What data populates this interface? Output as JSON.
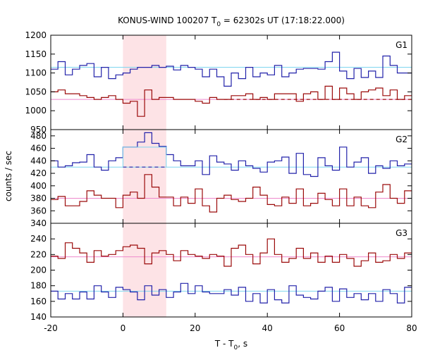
{
  "chart_data": {
    "type": "line",
    "title_prefix": "KONUS-WIND 100207 T",
    "title_sub": "0",
    "title_suffix": " = 62302s UT (17:18:22.000)",
    "ylabel": "counts / sec",
    "xlabel_prefix": "T - T",
    "xlabel_sub": "0",
    "xlabel_suffix": ", s",
    "xlim": [
      -20,
      80
    ],
    "xticks": [
      -20,
      0,
      20,
      40,
      60,
      80
    ],
    "highlight": [
      0,
      12
    ],
    "colors": {
      "blue": "#2222aa",
      "red": "#9b0a0a",
      "cyan": "#7fd6ef",
      "pink": "#ee88cc",
      "shade": "#fde3e6"
    },
    "bin_edges": [
      -20,
      -18,
      -16,
      -14,
      -12,
      -10,
      -8,
      -6,
      -4,
      -2,
      0,
      2,
      4,
      6,
      8,
      10,
      12,
      14,
      16,
      18,
      20,
      22,
      24,
      26,
      28,
      30,
      32,
      34,
      36,
      38,
      40,
      42,
      44,
      46,
      48,
      50,
      52,
      54,
      56,
      58,
      60,
      62,
      64,
      66,
      68,
      70,
      72,
      74,
      76,
      78,
      80
    ],
    "panels": [
      {
        "label": "G1",
        "ylim": [
          950,
          1200
        ],
        "yticks": [
          950,
          1000,
          1050,
          1100,
          1150,
          1200
        ],
        "series": [
          {
            "color": "blue",
            "values": [
              1110,
              1130,
              1095,
              1110,
              1120,
              1125,
              1090,
              1115,
              1085,
              1095,
              1100,
              1110,
              1115,
              1115,
              1120,
              1115,
              1118,
              1108,
              1120,
              1115,
              1110,
              1090,
              1110,
              1090,
              1065,
              1100,
              1085,
              1115,
              1090,
              1100,
              1095,
              1120,
              1090,
              1100,
              1110,
              1112,
              1112,
              1110,
              1130,
              1155,
              1105,
              1085,
              1112,
              1088,
              1105,
              1088,
              1145,
              1120,
              1100,
              1100
            ],
            "baseline": {
              "color": "cyan",
              "value": 1115,
              "from": -20,
              "to": 80,
              "style": "solid"
            }
          },
          {
            "color": "red",
            "values": [
              1050,
              1055,
              1045,
              1045,
              1040,
              1035,
              1030,
              1035,
              1040,
              1030,
              1020,
              1025,
              985,
              1055,
              1030,
              1035,
              1035,
              1030,
              1030,
              1030,
              1025,
              1020,
              1035,
              1030,
              1030,
              1040,
              1040,
              1045,
              1030,
              1035,
              1030,
              1045,
              1045,
              1045,
              1025,
              1045,
              1050,
              1030,
              1065,
              1030,
              1060,
              1045,
              1030,
              1050,
              1055,
              1060,
              1040,
              1055,
              1030,
              1040
            ],
            "baseline": {
              "color": "pink",
              "value": 1030,
              "from": -20,
              "to": 80,
              "style": "solid"
            },
            "extra_baseline": {
              "color": "red",
              "value": 1030,
              "from": 28,
              "to": 80,
              "style": "dashed"
            }
          }
        ]
      },
      {
        "label": "G2",
        "ylim": [
          340,
          490
        ],
        "yticks": [
          340,
          360,
          380,
          400,
          420,
          440,
          460,
          480
        ],
        "series": [
          {
            "color": "blue",
            "values": [
              440,
              430,
              432,
              437,
              438,
              450,
              430,
              425,
              440,
              445,
              462,
              462,
              470,
              485,
              468,
              463,
              450,
              440,
              432,
              432,
              440,
              418,
              448,
              438,
              435,
              425,
              440,
              432,
              428,
              422,
              438,
              440,
              446,
              420,
              452,
              418,
              415,
              445,
              432,
              425,
              462,
              430,
              438,
              445,
              420,
              432,
              428,
              440,
              432,
              435
            ],
            "baseline": {
              "color": "cyan",
              "value": 430,
              "from": -20,
              "to": 80,
              "style": "solid"
            },
            "extra_baseline": {
              "color": "blue",
              "value": 430,
              "from": 0,
              "to": 12,
              "style": "dashed"
            },
            "box": {
              "color": "cyan",
              "from": 0,
              "to": 12,
              "value": 462
            }
          },
          {
            "color": "red",
            "values": [
              378,
              383,
              368,
              368,
              375,
              392,
              385,
              380,
              380,
              365,
              385,
              390,
              380,
              418,
              398,
              382,
              382,
              368,
              382,
              372,
              395,
              368,
              358,
              380,
              385,
              378,
              375,
              380,
              398,
              385,
              370,
              368,
              382,
              372,
              395,
              368,
              372,
              388,
              378,
              368,
              395,
              368,
              382,
              368,
              365,
              390,
              402,
              380,
              372,
              392
            ],
            "baseline": {
              "color": "pink",
              "value": 380,
              "from": -20,
              "to": 80,
              "style": "solid"
            }
          }
        ]
      },
      {
        "label": "G3",
        "ylim": [
          140,
          260
        ],
        "yticks": [
          140,
          160,
          180,
          200,
          220,
          240
        ],
        "series": [
          {
            "color": "red",
            "values": [
              218,
              215,
              235,
              228,
              222,
              210,
              225,
              218,
              220,
              225,
              230,
              232,
              228,
              208,
              222,
              225,
              220,
              212,
              225,
              220,
              218,
              215,
              220,
              218,
              205,
              228,
              232,
              220,
              208,
              222,
              240,
              220,
              210,
              215,
              228,
              215,
              222,
              210,
              218,
              210,
              220,
              215,
              205,
              212,
              222,
              210,
              212,
              220,
              215,
              222
            ],
            "baseline": {
              "color": "pink",
              "value": 217,
              "from": -20,
              "to": 80,
              "style": "solid"
            }
          },
          {
            "color": "blue",
            "values": [
              173,
              163,
              170,
              163,
              172,
              163,
              180,
              172,
              165,
              178,
              175,
              172,
              162,
              180,
              168,
              175,
              165,
              172,
              183,
              170,
              180,
              172,
              170,
              170,
              175,
              168,
              178,
              160,
              170,
              158,
              175,
              162,
              158,
              180,
              168,
              165,
              163,
              173,
              178,
              160,
              176,
              165,
              170,
              162,
              170,
              160,
              175,
              170,
              158,
              178
            ],
            "baseline": {
              "color": "cyan",
              "value": 173,
              "from": -20,
              "to": 80,
              "style": "solid"
            }
          }
        ]
      }
    ]
  }
}
